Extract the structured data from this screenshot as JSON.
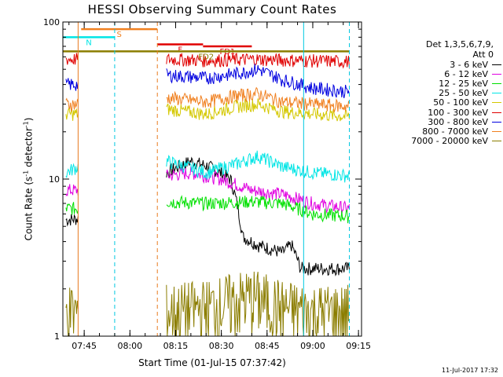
{
  "title": "HESSI Observing Summary Count Rates",
  "xlabel": "Start Time (01-Jul-15 07:37:42)",
  "ylabel_main": "Count Rate (s",
  "ylabel_sup": "-1",
  "ylabel_tail": " detector",
  "ylabel_sup2": "-1",
  "ylabel_end": ")",
  "stamp": "11-Jul-2017 17:32",
  "legend": {
    "header_line1": "Det 1,3,5,6,7,9,",
    "header_line2": "Att 0"
  },
  "colors": {
    "axis": "#000000",
    "flag_dashed": "#00c8e0",
    "flare_dashed": "#e87a1f"
  },
  "chart_data": {
    "type": "line",
    "title": "HESSI Observing Summary Count Rates",
    "xlabel": "Start Time (01-Jul-15 07:37:42)",
    "ylabel": "Count Rate (s-1 detector-1)",
    "xlim": [
      "07:38",
      "09:16"
    ],
    "ylim": [
      1,
      100
    ],
    "yscale": "log",
    "x_ticks": [
      "07:45",
      "08:00",
      "08:15",
      "08:30",
      "08:45",
      "09:00",
      "09:15"
    ],
    "y_ticks": [
      "1",
      "10",
      "100"
    ],
    "legend_position": "right",
    "grid": false,
    "series": [
      {
        "name": "3 - 6 keV",
        "color": "#000000",
        "points": [
          [
            "07:39",
            5.5
          ],
          [
            "07:43",
            5.6
          ],
          [
            "08:12",
            11
          ],
          [
            "08:20",
            13
          ],
          [
            "08:26",
            12
          ],
          [
            "08:33",
            10
          ],
          [
            "08:37",
            4.3
          ],
          [
            "08:42",
            3.8
          ],
          [
            "08:50",
            3.4
          ],
          [
            "08:53",
            3.8
          ],
          [
            "08:56",
            2.7
          ],
          [
            "09:12",
            2.7
          ]
        ]
      },
      {
        "name": "6 - 12 keV",
        "color": "#e000e0",
        "points": [
          [
            "07:39",
            8.5
          ],
          [
            "07:43",
            8.5
          ],
          [
            "08:12",
            10.5
          ],
          [
            "08:20",
            11
          ],
          [
            "08:30",
            10
          ],
          [
            "08:40",
            8.5
          ],
          [
            "08:50",
            8
          ],
          [
            "09:00",
            7
          ],
          [
            "09:12",
            6.5
          ]
        ]
      },
      {
        "name": "12 - 25 keV",
        "color": "#00e000",
        "points": [
          [
            "07:39",
            6.5
          ],
          [
            "07:43",
            6.5
          ],
          [
            "08:12",
            7.2
          ],
          [
            "08:25",
            7
          ],
          [
            "08:40",
            7.2
          ],
          [
            "08:50",
            7
          ],
          [
            "09:00",
            6
          ],
          [
            "09:12",
            5.8
          ]
        ]
      },
      {
        "name": "25 - 50 keV",
        "color": "#00e5e5",
        "points": [
          [
            "07:39",
            11
          ],
          [
            "07:43",
            12
          ],
          [
            "08:12",
            13
          ],
          [
            "08:25",
            11
          ],
          [
            "08:35",
            12.5
          ],
          [
            "08:42",
            14
          ],
          [
            "08:50",
            12
          ],
          [
            "09:00",
            11
          ],
          [
            "09:12",
            10.5
          ]
        ]
      },
      {
        "name": "50 - 100 keV",
        "color": "#d4c800",
        "points": [
          [
            "07:39",
            26
          ],
          [
            "07:43",
            26
          ],
          [
            "08:12",
            28
          ],
          [
            "08:25",
            26
          ],
          [
            "08:35",
            29
          ],
          [
            "08:42",
            30
          ],
          [
            "08:50",
            27
          ],
          [
            "09:00",
            26
          ],
          [
            "09:12",
            25
          ]
        ]
      },
      {
        "name": "100 - 300 keV",
        "color": "#e00000",
        "points": [
          [
            "07:39",
            58
          ],
          [
            "07:43",
            58
          ],
          [
            "08:12",
            58
          ],
          [
            "08:25",
            57
          ],
          [
            "08:40",
            58
          ],
          [
            "08:55",
            57
          ],
          [
            "09:12",
            56
          ]
        ]
      },
      {
        "name": "300 - 800 keV",
        "color": "#0000e0",
        "points": [
          [
            "07:39",
            40
          ],
          [
            "07:43",
            40
          ],
          [
            "08:12",
            46
          ],
          [
            "08:25",
            44
          ],
          [
            "08:35",
            47
          ],
          [
            "08:42",
            50
          ],
          [
            "08:50",
            43
          ],
          [
            "09:00",
            38
          ],
          [
            "09:12",
            36
          ]
        ]
      },
      {
        "name": "800 - 7000 keV",
        "color": "#f08020",
        "points": [
          [
            "07:39",
            30
          ],
          [
            "07:43",
            30
          ],
          [
            "08:12",
            33
          ],
          [
            "08:25",
            31
          ],
          [
            "08:35",
            34
          ],
          [
            "08:42",
            35
          ],
          [
            "08:50",
            31
          ],
          [
            "09:00",
            30
          ],
          [
            "09:12",
            29
          ]
        ]
      },
      {
        "name": "7000 - 20000 keV",
        "color": "#8b7d00",
        "points": [
          [
            "07:39",
            1.6
          ],
          [
            "07:43",
            1.6
          ],
          [
            "08:12",
            1.6
          ],
          [
            "08:25",
            1.7
          ],
          [
            "08:40",
            2
          ],
          [
            "08:50",
            1.7
          ],
          [
            "09:00",
            1.6
          ],
          [
            "09:12",
            1.6
          ]
        ]
      }
    ],
    "flag_bars": [
      {
        "label": "S",
        "start": "07:44",
        "end": "08:09",
        "y": 90,
        "color": "#f08020"
      },
      {
        "label": "N",
        "start": "07:38",
        "end": "07:55",
        "y": 80,
        "color": "#00e5e5"
      },
      {
        "label": "F",
        "start": "08:09",
        "end": "08:24",
        "y": 72,
        "color": "#e00000"
      },
      {
        "label": "FD1",
        "start": "08:24",
        "end": "08:40",
        "y": 70,
        "color": "#e00000"
      },
      {
        "label": "FD2",
        "start": "07:38",
        "end": "09:12",
        "y": 65,
        "color": "#8b7d00"
      }
    ]
  }
}
